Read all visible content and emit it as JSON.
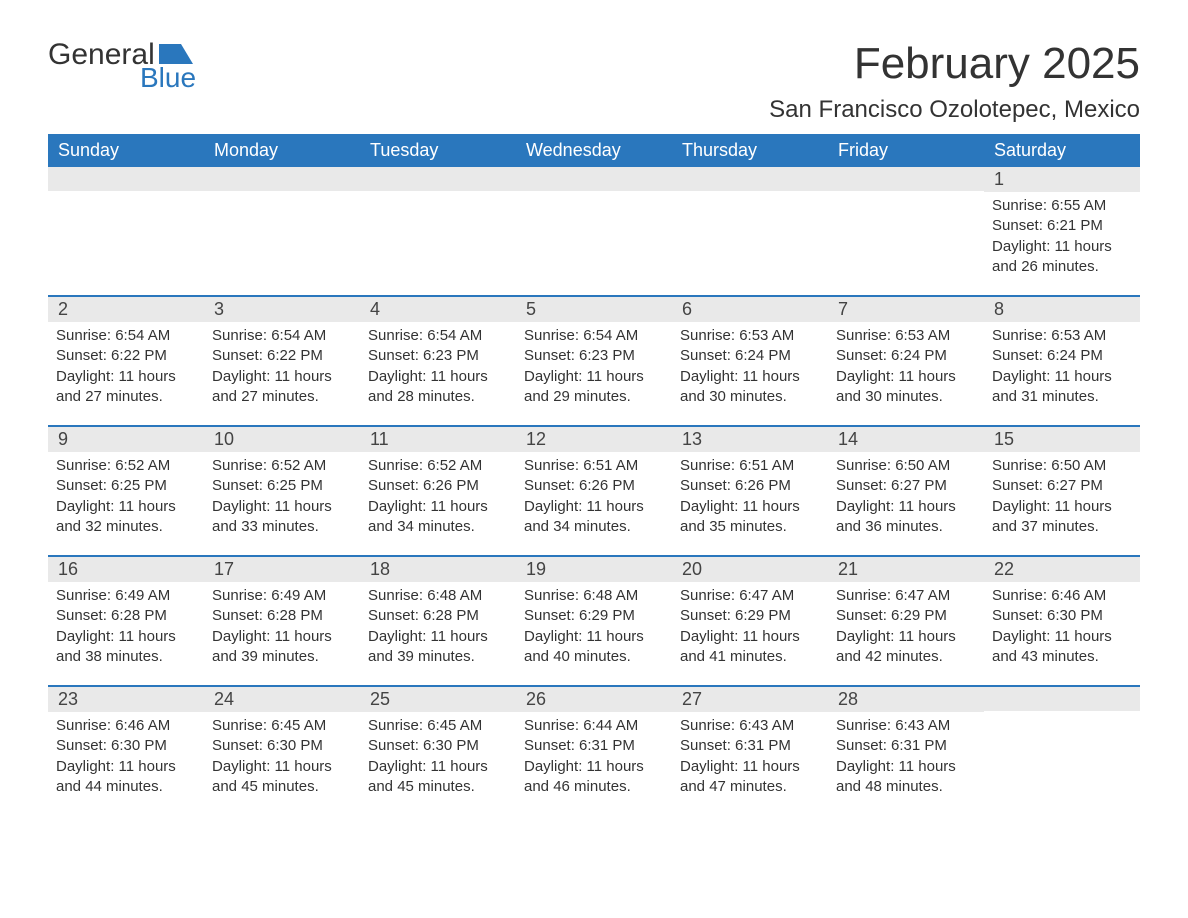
{
  "logo": {
    "word1": "General",
    "word2": "Blue",
    "flag_color": "#2a77bd"
  },
  "header": {
    "title": "February 2025",
    "subtitle": "San Francisco Ozolotepec, Mexico"
  },
  "colors": {
    "header_bg": "#2a77bd",
    "header_fg": "#ffffff",
    "band_bg": "#e9e9e9",
    "week_border": "#2a77bd",
    "text": "#333333",
    "page_bg": "#ffffff"
  },
  "fonts": {
    "title_size_pt": 33,
    "subtitle_size_pt": 18,
    "dow_size_pt": 14,
    "daynum_size_pt": 14,
    "body_size_pt": 11
  },
  "days_of_week": [
    "Sunday",
    "Monday",
    "Tuesday",
    "Wednesday",
    "Thursday",
    "Friday",
    "Saturday"
  ],
  "weeks": [
    [
      null,
      null,
      null,
      null,
      null,
      null,
      {
        "n": "1",
        "sunrise": "Sunrise: 6:55 AM",
        "sunset": "Sunset: 6:21 PM",
        "d1": "Daylight: 11 hours",
        "d2": "and 26 minutes."
      }
    ],
    [
      {
        "n": "2",
        "sunrise": "Sunrise: 6:54 AM",
        "sunset": "Sunset: 6:22 PM",
        "d1": "Daylight: 11 hours",
        "d2": "and 27 minutes."
      },
      {
        "n": "3",
        "sunrise": "Sunrise: 6:54 AM",
        "sunset": "Sunset: 6:22 PM",
        "d1": "Daylight: 11 hours",
        "d2": "and 27 minutes."
      },
      {
        "n": "4",
        "sunrise": "Sunrise: 6:54 AM",
        "sunset": "Sunset: 6:23 PM",
        "d1": "Daylight: 11 hours",
        "d2": "and 28 minutes."
      },
      {
        "n": "5",
        "sunrise": "Sunrise: 6:54 AM",
        "sunset": "Sunset: 6:23 PM",
        "d1": "Daylight: 11 hours",
        "d2": "and 29 minutes."
      },
      {
        "n": "6",
        "sunrise": "Sunrise: 6:53 AM",
        "sunset": "Sunset: 6:24 PM",
        "d1": "Daylight: 11 hours",
        "d2": "and 30 minutes."
      },
      {
        "n": "7",
        "sunrise": "Sunrise: 6:53 AM",
        "sunset": "Sunset: 6:24 PM",
        "d1": "Daylight: 11 hours",
        "d2": "and 30 minutes."
      },
      {
        "n": "8",
        "sunrise": "Sunrise: 6:53 AM",
        "sunset": "Sunset: 6:24 PM",
        "d1": "Daylight: 11 hours",
        "d2": "and 31 minutes."
      }
    ],
    [
      {
        "n": "9",
        "sunrise": "Sunrise: 6:52 AM",
        "sunset": "Sunset: 6:25 PM",
        "d1": "Daylight: 11 hours",
        "d2": "and 32 minutes."
      },
      {
        "n": "10",
        "sunrise": "Sunrise: 6:52 AM",
        "sunset": "Sunset: 6:25 PM",
        "d1": "Daylight: 11 hours",
        "d2": "and 33 minutes."
      },
      {
        "n": "11",
        "sunrise": "Sunrise: 6:52 AM",
        "sunset": "Sunset: 6:26 PM",
        "d1": "Daylight: 11 hours",
        "d2": "and 34 minutes."
      },
      {
        "n": "12",
        "sunrise": "Sunrise: 6:51 AM",
        "sunset": "Sunset: 6:26 PM",
        "d1": "Daylight: 11 hours",
        "d2": "and 34 minutes."
      },
      {
        "n": "13",
        "sunrise": "Sunrise: 6:51 AM",
        "sunset": "Sunset: 6:26 PM",
        "d1": "Daylight: 11 hours",
        "d2": "and 35 minutes."
      },
      {
        "n": "14",
        "sunrise": "Sunrise: 6:50 AM",
        "sunset": "Sunset: 6:27 PM",
        "d1": "Daylight: 11 hours",
        "d2": "and 36 minutes."
      },
      {
        "n": "15",
        "sunrise": "Sunrise: 6:50 AM",
        "sunset": "Sunset: 6:27 PM",
        "d1": "Daylight: 11 hours",
        "d2": "and 37 minutes."
      }
    ],
    [
      {
        "n": "16",
        "sunrise": "Sunrise: 6:49 AM",
        "sunset": "Sunset: 6:28 PM",
        "d1": "Daylight: 11 hours",
        "d2": "and 38 minutes."
      },
      {
        "n": "17",
        "sunrise": "Sunrise: 6:49 AM",
        "sunset": "Sunset: 6:28 PM",
        "d1": "Daylight: 11 hours",
        "d2": "and 39 minutes."
      },
      {
        "n": "18",
        "sunrise": "Sunrise: 6:48 AM",
        "sunset": "Sunset: 6:28 PM",
        "d1": "Daylight: 11 hours",
        "d2": "and 39 minutes."
      },
      {
        "n": "19",
        "sunrise": "Sunrise: 6:48 AM",
        "sunset": "Sunset: 6:29 PM",
        "d1": "Daylight: 11 hours",
        "d2": "and 40 minutes."
      },
      {
        "n": "20",
        "sunrise": "Sunrise: 6:47 AM",
        "sunset": "Sunset: 6:29 PM",
        "d1": "Daylight: 11 hours",
        "d2": "and 41 minutes."
      },
      {
        "n": "21",
        "sunrise": "Sunrise: 6:47 AM",
        "sunset": "Sunset: 6:29 PM",
        "d1": "Daylight: 11 hours",
        "d2": "and 42 minutes."
      },
      {
        "n": "22",
        "sunrise": "Sunrise: 6:46 AM",
        "sunset": "Sunset: 6:30 PM",
        "d1": "Daylight: 11 hours",
        "d2": "and 43 minutes."
      }
    ],
    [
      {
        "n": "23",
        "sunrise": "Sunrise: 6:46 AM",
        "sunset": "Sunset: 6:30 PM",
        "d1": "Daylight: 11 hours",
        "d2": "and 44 minutes."
      },
      {
        "n": "24",
        "sunrise": "Sunrise: 6:45 AM",
        "sunset": "Sunset: 6:30 PM",
        "d1": "Daylight: 11 hours",
        "d2": "and 45 minutes."
      },
      {
        "n": "25",
        "sunrise": "Sunrise: 6:45 AM",
        "sunset": "Sunset: 6:30 PM",
        "d1": "Daylight: 11 hours",
        "d2": "and 45 minutes."
      },
      {
        "n": "26",
        "sunrise": "Sunrise: 6:44 AM",
        "sunset": "Sunset: 6:31 PM",
        "d1": "Daylight: 11 hours",
        "d2": "and 46 minutes."
      },
      {
        "n": "27",
        "sunrise": "Sunrise: 6:43 AM",
        "sunset": "Sunset: 6:31 PM",
        "d1": "Daylight: 11 hours",
        "d2": "and 47 minutes."
      },
      {
        "n": "28",
        "sunrise": "Sunrise: 6:43 AM",
        "sunset": "Sunset: 6:31 PM",
        "d1": "Daylight: 11 hours",
        "d2": "and 48 minutes."
      },
      null
    ]
  ]
}
